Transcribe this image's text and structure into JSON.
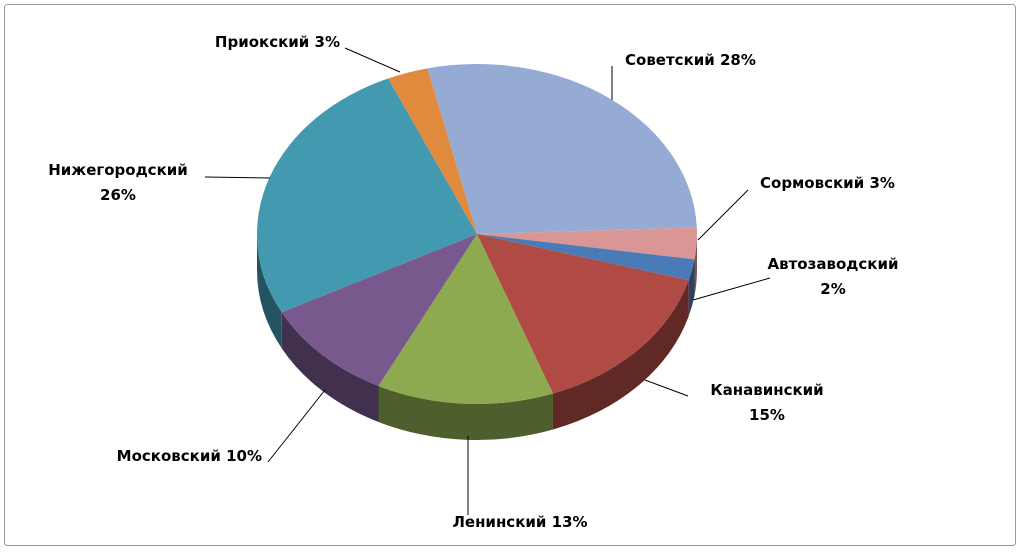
{
  "chart_data": {
    "type": "pie",
    "categories": [
      "Советский",
      "Сормовский",
      "Автозаводский",
      "Канавинский",
      "Ленинский",
      "Московский",
      "Нижегородский",
      "Приокский"
    ],
    "values": [
      28,
      3,
      2,
      15,
      13,
      10,
      26,
      3
    ],
    "value_labels": [
      "28%",
      "3%",
      "2%",
      "15%",
      "13%",
      "10%",
      "26%",
      "3%"
    ],
    "colors": [
      "#95abd4",
      "#d99694",
      "#4a7ab8",
      "#b04a45",
      "#8daa50",
      "#78598e",
      "#4299b0",
      "#e08a3e"
    ]
  }
}
